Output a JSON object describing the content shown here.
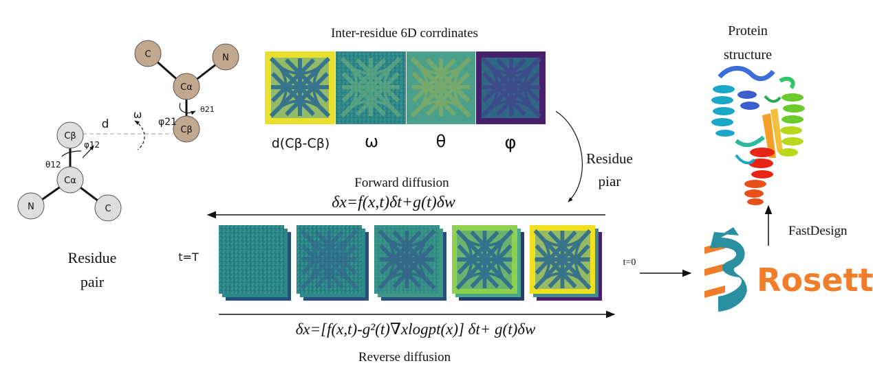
{
  "residue_geometry": {
    "atoms": {
      "c": "C",
      "n": "N",
      "calpha": "Cα",
      "cbeta": "Cβ"
    },
    "distance": "d",
    "omega": "ω",
    "phi12": "φ12",
    "phi21": "φ21",
    "theta12": "θ12",
    "theta21": "θ21",
    "caption_line1": "Residue",
    "caption_line2": "pair"
  },
  "coords_panel": {
    "title": "Inter-residue 6D corrdinates",
    "maps": [
      {
        "label": "d(Cβ-Cβ)",
        "color": "#e8df2e"
      },
      {
        "label": "ω",
        "color": "#3a8a8c"
      },
      {
        "label": "θ",
        "color": "#4aa08a"
      },
      {
        "label": "φ",
        "color": "#46206a"
      }
    ],
    "residue_piar_line1": "Residue",
    "residue_piar_line2": "piar"
  },
  "diffusion": {
    "forward_label": "Forward diffusion",
    "forward_eq": "δx=f(x,t)δt+g(t)δw",
    "reverse_label": "Reverse diffusion",
    "reverse_eq": "δx=[f(x,t)-g²(t)∇xlogpt(x)] δt+ g(t)δw",
    "t_T": "t=T",
    "t_0": "t=0",
    "stack_colors": [
      "#2a8a8a",
      "#2f8a8b",
      "#3d9a86",
      "#8fd14f",
      "#f0e020"
    ]
  },
  "output_panel": {
    "title_line1": "Protein",
    "title_line2": "structure",
    "fastdesign": "FastDesign",
    "rosetta": "Rosetta",
    "rosetta_color": "#f07d2a"
  }
}
